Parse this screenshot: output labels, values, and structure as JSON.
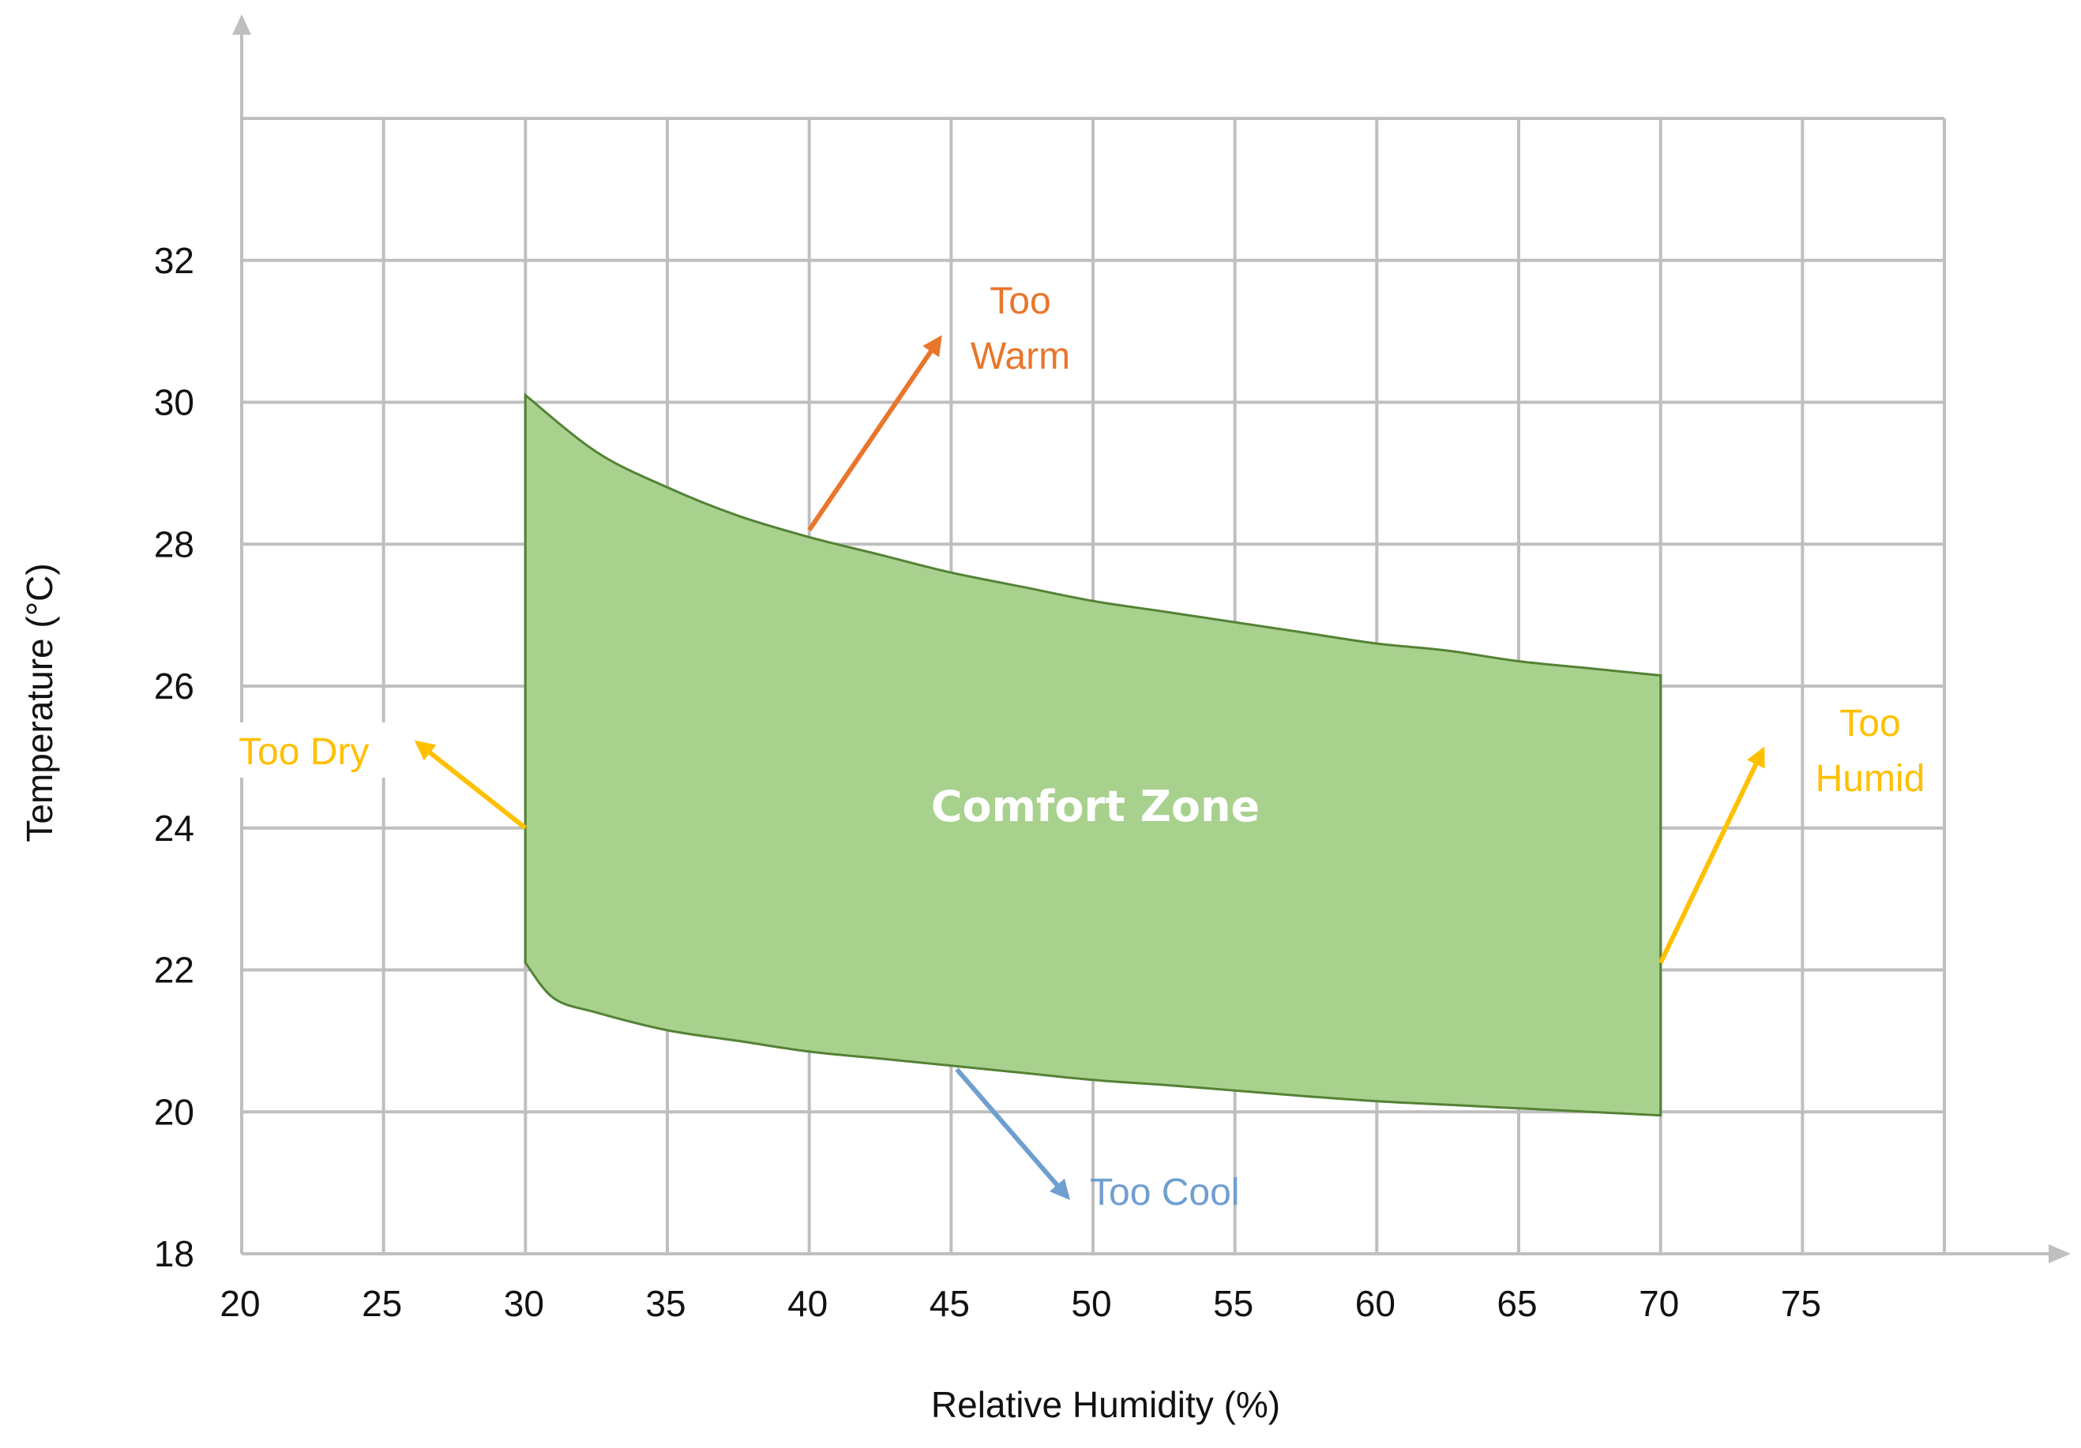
{
  "chart_data": {
    "type": "area",
    "title": "",
    "xlabel": "Relative Humidity  (%)",
    "ylabel": "Temperature  (°C)",
    "xlim": [
      20,
      80
    ],
    "ylim": [
      18,
      34
    ],
    "x_ticks": [
      20,
      25,
      30,
      35,
      40,
      45,
      50,
      55,
      60,
      65,
      70,
      75
    ],
    "y_ticks": [
      18,
      20,
      22,
      24,
      26,
      28,
      30,
      32
    ],
    "x_grid": [
      20,
      25,
      30,
      35,
      40,
      45,
      50,
      55,
      60,
      65,
      70,
      75,
      80
    ],
    "y_grid": [
      18,
      20,
      22,
      24,
      26,
      28,
      30,
      32,
      34
    ],
    "grid": true,
    "series": [
      {
        "name": "Comfort Zone",
        "label": "Comfort Zone",
        "color": "#a9d18e",
        "edge_color": "#548235",
        "upper": {
          "x": [
            30,
            32.5,
            35,
            37.5,
            40,
            42.5,
            45,
            47.5,
            50,
            52.5,
            55,
            57.5,
            60,
            62.5,
            65,
            67.5,
            70
          ],
          "y": [
            30.1,
            29.3,
            28.8,
            28.4,
            28.1,
            27.85,
            27.6,
            27.4,
            27.2,
            27.05,
            26.9,
            26.75,
            26.6,
            26.5,
            26.35,
            26.25,
            26.15
          ]
        },
        "lower": {
          "x": [
            30,
            31,
            32.5,
            35,
            37.5,
            40,
            42.5,
            45,
            47.5,
            50,
            52.5,
            55,
            57.5,
            60,
            62.5,
            65,
            67.5,
            70
          ],
          "y": [
            22.1,
            21.6,
            21.4,
            21.15,
            21.0,
            20.85,
            20.75,
            20.65,
            20.55,
            20.45,
            20.38,
            20.3,
            20.22,
            20.15,
            20.1,
            20.05,
            20.0,
            19.95
          ]
        }
      }
    ],
    "annotations": [
      {
        "id": "too-warm",
        "lines": [
          "Too",
          "Warm"
        ],
        "color": "#e9762b",
        "arrow_from": [
          40,
          28.2
        ],
        "arrow_to": [
          44.6,
          30.9
        ]
      },
      {
        "id": "too-dry",
        "lines": [
          "Too Dry"
        ],
        "color": "#ffc000",
        "arrow_from": [
          30,
          24.0
        ],
        "arrow_to": [
          26.2,
          25.2
        ]
      },
      {
        "id": "too-humid",
        "lines": [
          "Too",
          "Humid"
        ],
        "color": "#ffc000",
        "arrow_from": [
          70,
          22.1
        ],
        "arrow_to": [
          73.6,
          25.1
        ]
      },
      {
        "id": "too-cool",
        "lines": [
          "Too Cool"
        ],
        "color": "#6f9fcf",
        "arrow_from": [
          45.2,
          20.6
        ],
        "arrow_to": [
          49.1,
          18.8
        ]
      }
    ]
  }
}
